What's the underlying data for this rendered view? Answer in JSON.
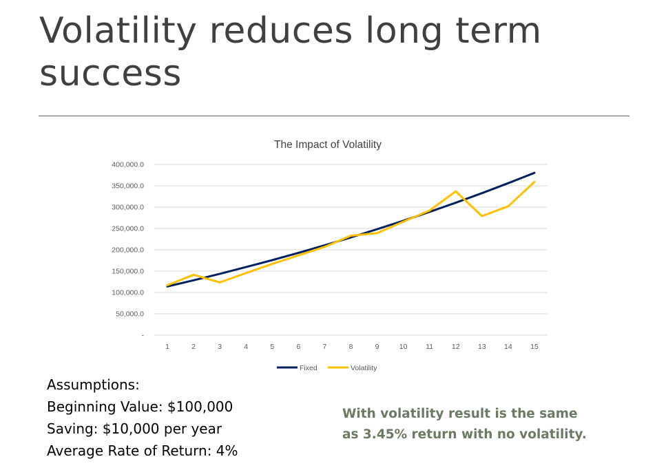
{
  "slide": {
    "title": "Volatility reduces long term success"
  },
  "assumptions": {
    "heading": "Assumptions:",
    "lines": [
      "Beginning Value: $100,000",
      "Saving: $10,000 per year",
      "Average Rate of Return: 4%"
    ]
  },
  "conclusion": {
    "lines": [
      "With volatility result is the same",
      "as 3.45% return with no volatility."
    ]
  },
  "colors": {
    "fixed": "#002060",
    "volatility": "#FFC000",
    "conclusion_text": "#6B7A61"
  },
  "chart_data": {
    "type": "line",
    "title": "The Impact of Volatility",
    "xlabel": "",
    "ylabel": "",
    "categories": [
      "1",
      "2",
      "3",
      "4",
      "5",
      "6",
      "7",
      "8",
      "9",
      "10",
      "11",
      "12",
      "13",
      "14",
      "15"
    ],
    "ylim": [
      0,
      400000
    ],
    "yticks": [
      {
        "value": 0,
        "label": "-"
      },
      {
        "value": 50000,
        "label": "50,000.0"
      },
      {
        "value": 100000,
        "label": "100,000.0"
      },
      {
        "value": 150000,
        "label": "150,000.0"
      },
      {
        "value": 200000,
        "label": "200,000.0"
      },
      {
        "value": 250000,
        "label": "250,000.0"
      },
      {
        "value": 300000,
        "label": "300,000.0"
      },
      {
        "value": 350000,
        "label": "350,000.0"
      },
      {
        "value": 400000,
        "label": "400,000.0"
      }
    ],
    "grid": true,
    "legend_position": "bottom",
    "series": [
      {
        "name": "Fixed",
        "color": "#002060",
        "values": [
          114000,
          128560,
          143700,
          159450,
          175830,
          192860,
          210580,
          229000,
          248160,
          268090,
          288810,
          310370,
          332780,
          356100,
          380340
        ]
      },
      {
        "name": "Volatility",
        "color": "#FFC000",
        "values": [
          117000,
          141500,
          123500,
          145500,
          167000,
          187000,
          207000,
          233000,
          239000,
          266000,
          292000,
          337000,
          279000,
          302000,
          359000
        ]
      }
    ]
  }
}
